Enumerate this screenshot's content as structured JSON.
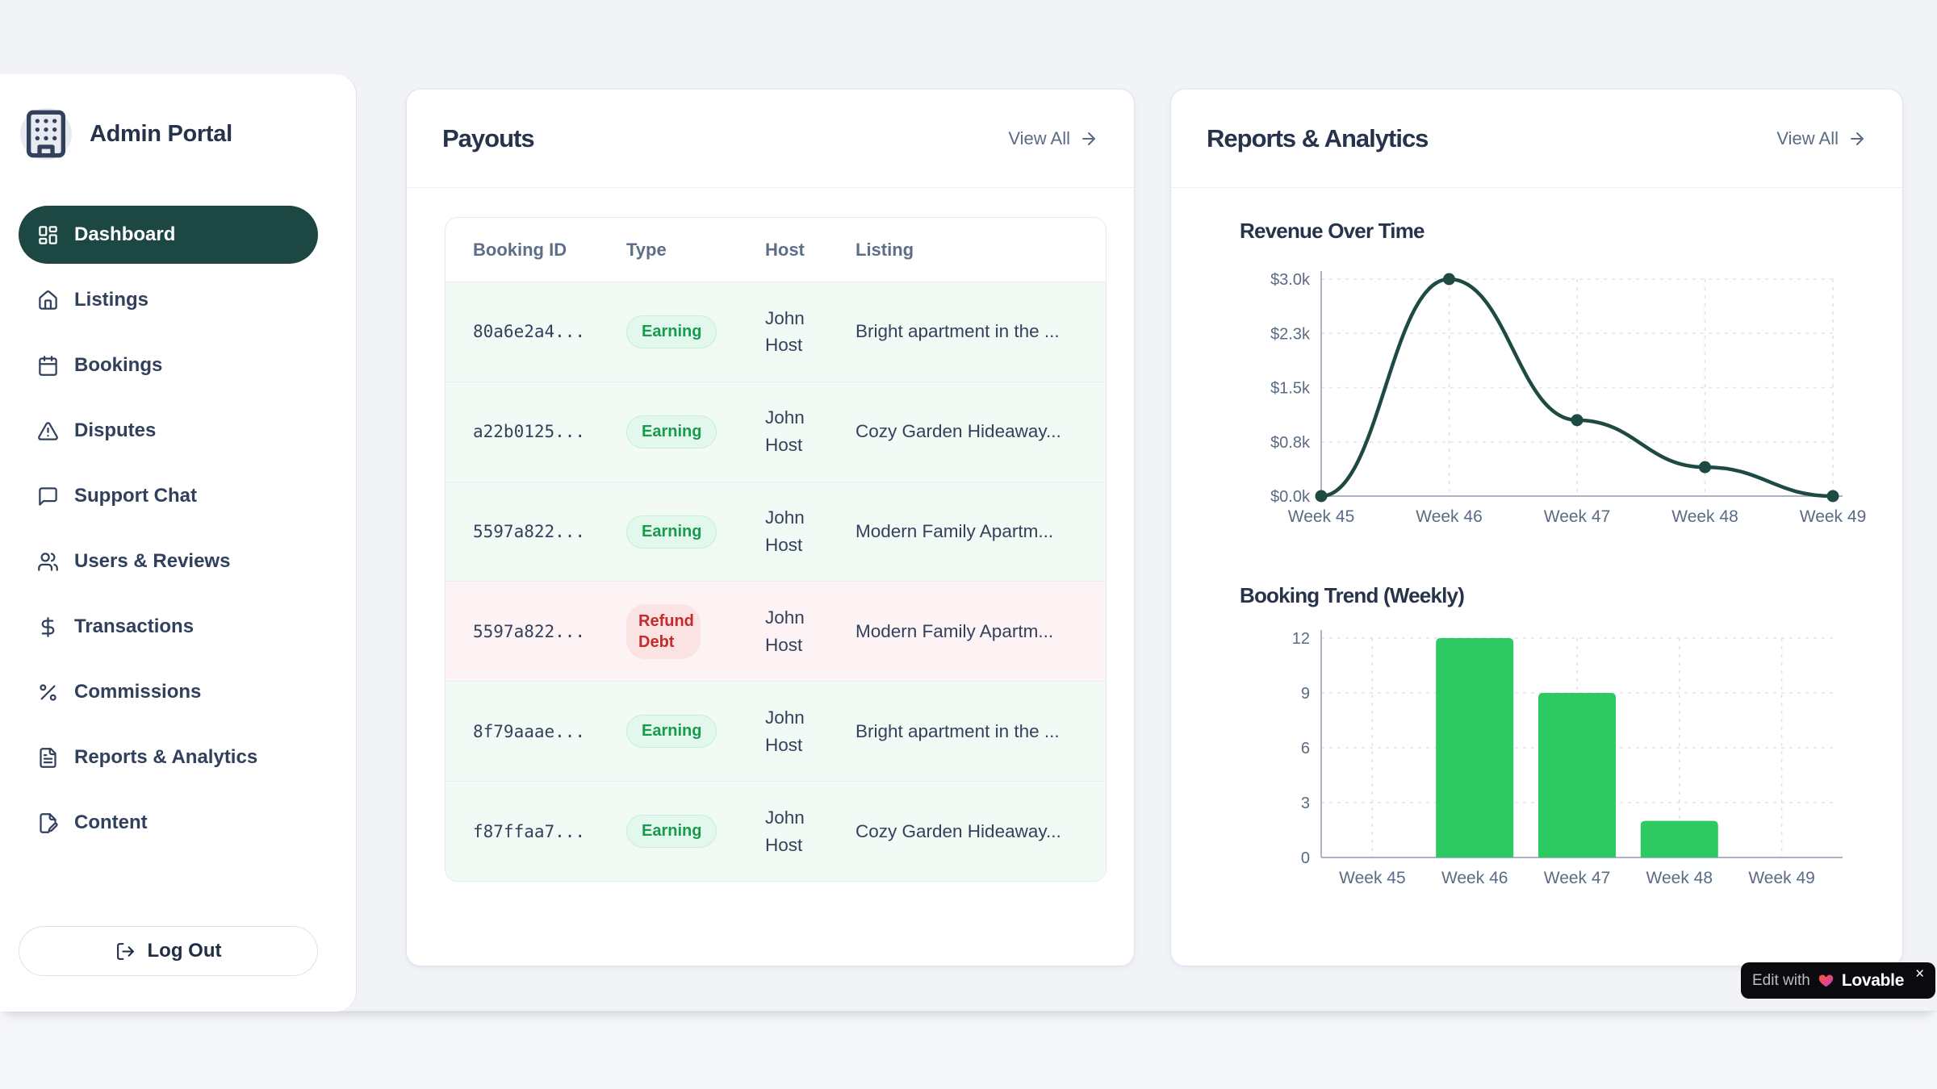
{
  "sidebar": {
    "brand": {
      "title": "Admin Portal",
      "logo_icon": "building-icon"
    },
    "items": [
      {
        "id": "dashboard",
        "label": "Dashboard",
        "icon": "dashboard-icon",
        "active": true
      },
      {
        "id": "listings",
        "label": "Listings",
        "icon": "home-icon",
        "active": false
      },
      {
        "id": "bookings",
        "label": "Bookings",
        "icon": "calendar-icon",
        "active": false
      },
      {
        "id": "disputes",
        "label": "Disputes",
        "icon": "alert-triangle-icon",
        "active": false
      },
      {
        "id": "support-chat",
        "label": "Support Chat",
        "icon": "chat-icon",
        "active": false
      },
      {
        "id": "users-reviews",
        "label": "Users & Reviews",
        "icon": "users-icon",
        "active": false
      },
      {
        "id": "transactions",
        "label": "Transactions",
        "icon": "dollar-icon",
        "active": false
      },
      {
        "id": "commissions",
        "label": "Commissions",
        "icon": "percent-icon",
        "active": false
      },
      {
        "id": "reports-analytics",
        "label": "Reports & Analytics",
        "icon": "file-text-icon",
        "active": false
      },
      {
        "id": "content",
        "label": "Content",
        "icon": "file-pen-icon",
        "active": false
      }
    ],
    "logout_label": "Log Out"
  },
  "payouts": {
    "title": "Payouts",
    "view_all_label": "View All",
    "table": {
      "columns": [
        "Booking ID",
        "Type",
        "Host",
        "Listing"
      ],
      "rows": [
        {
          "booking_id": "80a6e2a4...",
          "type": "Earning",
          "type_variant": "earning",
          "host": "John Host",
          "listing": "Bright apartment in the ..."
        },
        {
          "booking_id": "a22b0125...",
          "type": "Earning",
          "type_variant": "earning",
          "host": "John Host",
          "listing": "Cozy Garden Hideaway..."
        },
        {
          "booking_id": "5597a822...",
          "type": "Earning",
          "type_variant": "earning",
          "host": "John Host",
          "listing": "Modern Family Apartm..."
        },
        {
          "booking_id": "5597a822...",
          "type": "Refund Debt",
          "type_variant": "refund",
          "host": "John Host",
          "listing": "Modern Family Apartm..."
        },
        {
          "booking_id": "8f79aaae...",
          "type": "Earning",
          "type_variant": "earning",
          "host": "John Host",
          "listing": "Bright apartment in the ..."
        },
        {
          "booking_id": "f87ffaa7...",
          "type": "Earning",
          "type_variant": "earning",
          "host": "John Host",
          "listing": "Cozy Garden Hideaway..."
        }
      ]
    }
  },
  "reports": {
    "title": "Reports & Analytics",
    "view_all_label": "View All"
  },
  "chart_data": [
    {
      "type": "line",
      "title": "Revenue Over Time",
      "categories": [
        "Week 45",
        "Week 46",
        "Week 47",
        "Week 48",
        "Week 49"
      ],
      "values": [
        0,
        3000,
        1050,
        400,
        0
      ],
      "xlabel": "",
      "ylabel": "",
      "ylim": [
        0,
        3000
      ],
      "yticks": [
        0,
        750,
        1500,
        2250,
        3000
      ],
      "ytick_labels": [
        "$0.0k",
        "$0.8k",
        "$1.5k",
        "$2.3k",
        "$3.0k"
      ],
      "grid": "dashed",
      "legend": "none",
      "line_color": "#1d4a43"
    },
    {
      "type": "bar",
      "title": "Booking Trend (Weekly)",
      "categories": [
        "Week 45",
        "Week 46",
        "Week 47",
        "Week 48",
        "Week 49"
      ],
      "values": [
        0,
        12,
        9,
        2,
        0
      ],
      "xlabel": "",
      "ylabel": "",
      "ylim": [
        0,
        12
      ],
      "yticks": [
        0,
        3,
        6,
        9,
        12
      ],
      "ytick_labels": [
        "0",
        "3",
        "6",
        "9",
        "12"
      ],
      "grid": "dashed",
      "legend": "none",
      "bar_color": "#2dc961"
    }
  ],
  "edit_badge": {
    "prefix": "Edit with",
    "brand": "Lovable",
    "close": "×"
  },
  "colors": {
    "accent_dark_teal": "#1c4742",
    "positive_green": "#189a4d",
    "positive_row_bg": "#f1faf5",
    "negative_red": "#c32c2c",
    "negative_row_bg": "#fdf3f4",
    "bar_green": "#2dc961",
    "line_teal": "#1d4a43"
  }
}
